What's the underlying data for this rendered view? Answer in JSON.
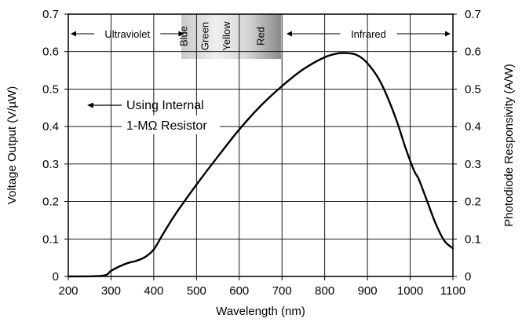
{
  "chart_data": {
    "type": "line",
    "xlabel": "Wavelength (nm)",
    "ylabel_left": "Voltage Output (V/µW)",
    "ylabel_right": "Photodiode Responsivity (A/W)",
    "xlim": [
      200,
      1100
    ],
    "ylim": [
      0,
      0.7
    ],
    "x_ticks": [
      200,
      300,
      400,
      500,
      600,
      700,
      800,
      900,
      1000,
      1100
    ],
    "x_tick_labels": [
      "200",
      "300",
      "400",
      "500",
      "600",
      "700",
      "800",
      "900",
      "1000",
      "1100"
    ],
    "y_ticks": [
      0,
      0.1,
      0.2,
      0.3,
      0.4,
      0.5,
      0.6,
      0.7
    ],
    "y_tick_labels": [
      "0",
      "0.1",
      "0.2",
      "0.3",
      "0.4",
      "0.5",
      "0.6",
      "0.7"
    ],
    "grid": true,
    "series": [
      {
        "x": [
          200,
          280,
          300,
          320,
          340,
          360,
          380,
          400,
          420,
          450,
          500,
          550,
          600,
          650,
          700,
          750,
          800,
          830,
          850,
          870,
          890,
          910,
          930,
          950,
          970,
          990,
          1010,
          1020,
          1040,
          1060,
          1080,
          1100
        ],
        "y": [
          0,
          0.002,
          0.015,
          0.027,
          0.036,
          0.042,
          0.052,
          0.072,
          0.11,
          0.165,
          0.245,
          0.32,
          0.392,
          0.455,
          0.508,
          0.553,
          0.585,
          0.595,
          0.596,
          0.593,
          0.58,
          0.555,
          0.52,
          0.47,
          0.41,
          0.34,
          0.28,
          0.26,
          0.2,
          0.14,
          0.095,
          0.075
        ]
      }
    ],
    "bands": [
      {
        "label": "Ultraviolet",
        "from": 200,
        "to": 480
      },
      {
        "label": "Infrared",
        "from": 705,
        "to": 1100
      }
    ],
    "spectrum_labels": [
      {
        "label": "Blue",
        "x": 470
      },
      {
        "label": "Green",
        "x": 520
      },
      {
        "label": "Yellow",
        "x": 570
      },
      {
        "label": "Red",
        "x": 650
      }
    ],
    "annotation": {
      "line1": "Using Internal",
      "line2": "1-MΩ Resistor"
    }
  }
}
